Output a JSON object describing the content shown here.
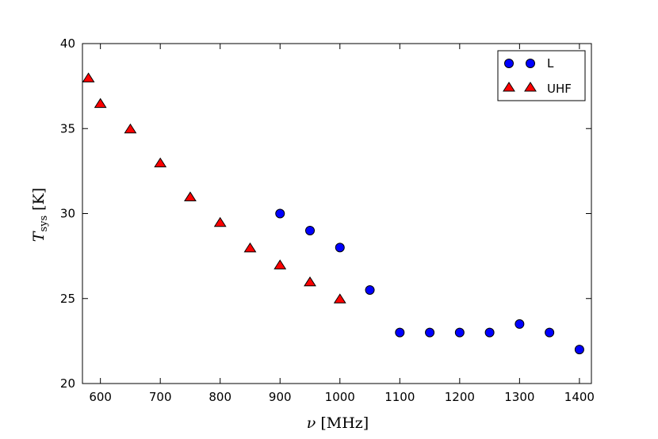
{
  "chart_data": {
    "type": "scatter",
    "title": "",
    "xlabel": {
      "symbol": "ν",
      "unit": "[MHz]"
    },
    "ylabel": {
      "symbol": "T",
      "subscript": "sys",
      "unit": "[K]"
    },
    "xlim": [
      570,
      1420
    ],
    "ylim": [
      20,
      40
    ],
    "xticks": [
      600,
      700,
      800,
      900,
      1000,
      1100,
      1200,
      1300,
      1400
    ],
    "yticks": [
      20,
      25,
      30,
      35,
      40
    ],
    "grid": false,
    "legend": {
      "placement": "top-right"
    },
    "series": [
      {
        "name": "L",
        "marker": "circle",
        "color": "#0000ff",
        "x": [
          900,
          950,
          1000,
          1050,
          1100,
          1150,
          1200,
          1250,
          1300,
          1350,
          1400
        ],
        "y": [
          30,
          29,
          28,
          25.5,
          23,
          23,
          23,
          23,
          23.5,
          23,
          22
        ]
      },
      {
        "name": "UHF",
        "marker": "triangle",
        "color": "#ff0000",
        "x": [
          580,
          600,
          650,
          700,
          750,
          800,
          850,
          900,
          950,
          1000
        ],
        "y": [
          38,
          36.5,
          35,
          33,
          31,
          29.5,
          28,
          27,
          26,
          25
        ]
      }
    ]
  }
}
